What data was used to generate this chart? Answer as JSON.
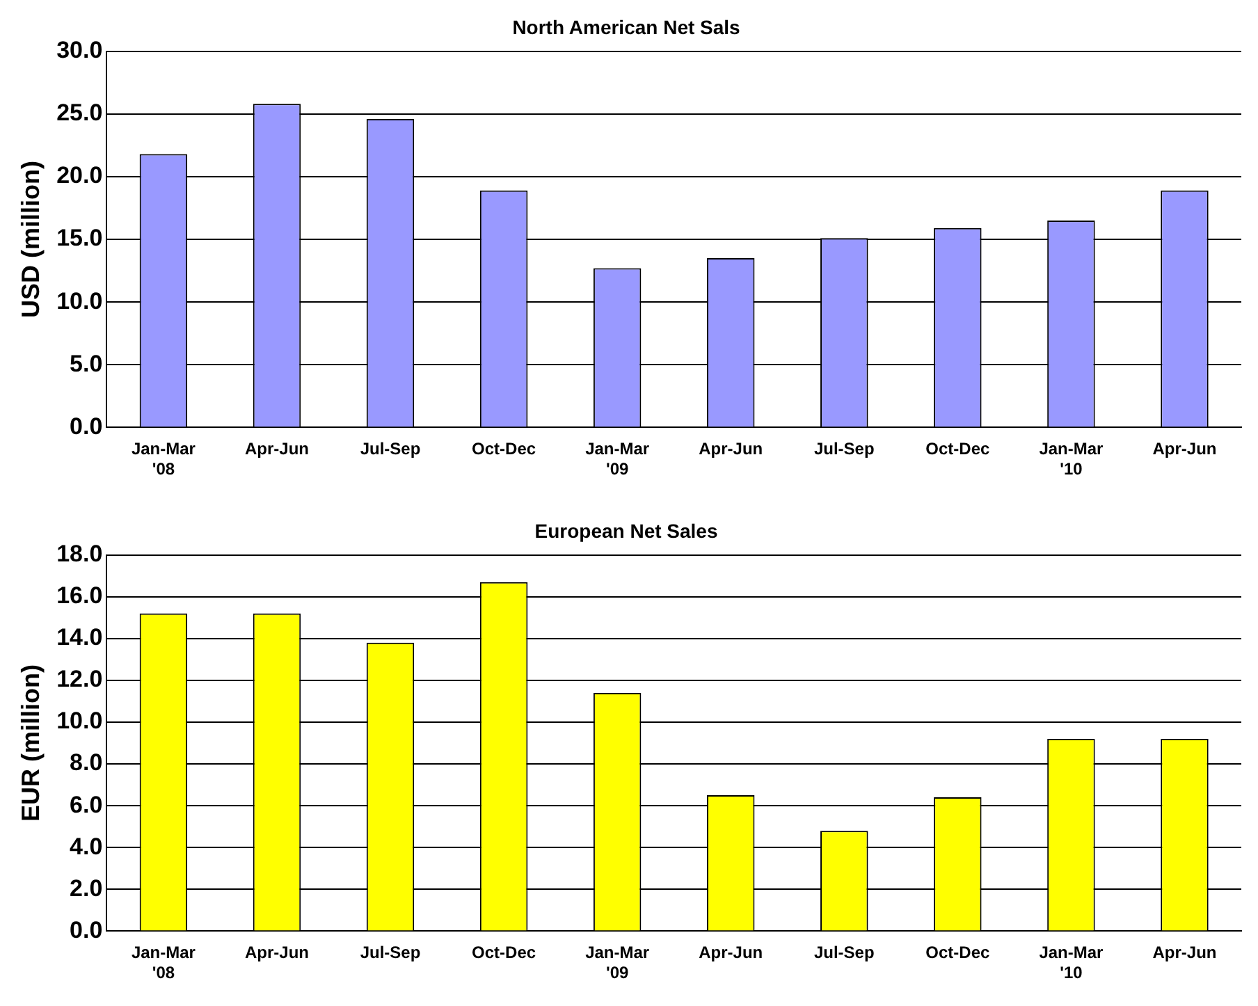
{
  "chart_data": [
    {
      "type": "bar",
      "title": "North American Net Sals",
      "ylabel": "USD (million)",
      "categories": [
        "Jan-Mar\n'08",
        "Apr-Jun",
        "Jul-Sep",
        "Oct-Dec",
        "Jan-Mar\n'09",
        "Apr-Jun",
        "Jul-Sep",
        "Oct-Dec",
        "Jan-Mar\n'10",
        "Apr-Jun"
      ],
      "values": [
        21.8,
        25.8,
        24.6,
        18.9,
        12.7,
        13.5,
        15.1,
        15.9,
        16.5,
        18.9
      ],
      "color": "#9999ff",
      "ylim": [
        0,
        30
      ],
      "yticks": [
        {
          "value": 0,
          "label": "0.0"
        },
        {
          "value": 5,
          "label": "5.0"
        },
        {
          "value": 10,
          "label": "10.0"
        },
        {
          "value": 15,
          "label": "15.0"
        },
        {
          "value": 20,
          "label": "20.0"
        },
        {
          "value": 25,
          "label": "25.0"
        },
        {
          "value": 30,
          "label": "30.0"
        }
      ],
      "grid": "y"
    },
    {
      "type": "bar",
      "title": "European Net Sales",
      "ylabel": "EUR (million)",
      "categories": [
        "Jan-Mar\n'08",
        "Apr-Jun",
        "Jul-Sep",
        "Oct-Dec",
        "Jan-Mar\n'09",
        "Apr-Jun",
        "Jul-Sep",
        "Oct-Dec",
        "Jan-Mar\n'10",
        "Apr-Jun"
      ],
      "values": [
        15.2,
        15.2,
        13.8,
        16.7,
        11.4,
        6.5,
        4.8,
        6.4,
        9.2,
        9.2
      ],
      "color": "#ffff00",
      "ylim": [
        0,
        18
      ],
      "yticks": [
        {
          "value": 0,
          "label": "0.0"
        },
        {
          "value": 2,
          "label": "2.0"
        },
        {
          "value": 4,
          "label": "4.0"
        },
        {
          "value": 6,
          "label": "6.0"
        },
        {
          "value": 8,
          "label": "8.0"
        },
        {
          "value": 10,
          "label": "10.0"
        },
        {
          "value": 12,
          "label": "12.0"
        },
        {
          "value": 14,
          "label": "14.0"
        },
        {
          "value": 16,
          "label": "16.0"
        },
        {
          "value": 18,
          "label": "18.0"
        }
      ],
      "grid": "y"
    }
  ]
}
